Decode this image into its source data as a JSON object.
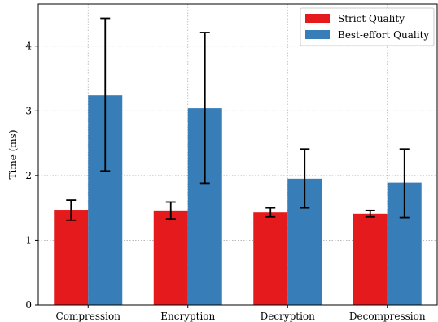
{
  "chart_data": {
    "type": "bar",
    "categories": [
      "Compression",
      "Encryption",
      "Decryption",
      "Decompression"
    ],
    "series": [
      {
        "name": "Strict Quality",
        "color": "#e41a1c",
        "values": [
          1.47,
          1.46,
          1.43,
          1.41
        ],
        "err_low": [
          1.31,
          1.33,
          1.36,
          1.36
        ],
        "err_high": [
          1.62,
          1.59,
          1.5,
          1.46
        ]
      },
      {
        "name": "Best-effort Quality",
        "color": "#377eb8",
        "values": [
          3.24,
          3.04,
          1.95,
          1.89
        ],
        "err_low": [
          2.07,
          1.88,
          1.5,
          1.35
        ],
        "err_high": [
          4.43,
          4.21,
          2.41,
          2.41
        ]
      }
    ],
    "title": "",
    "xlabel": "",
    "ylabel": "Time (ms)",
    "ylim": [
      0,
      4.65
    ],
    "yticks": [
      "0",
      "1",
      "2",
      "3",
      "4"
    ],
    "grid": true,
    "legend": "top-right"
  }
}
